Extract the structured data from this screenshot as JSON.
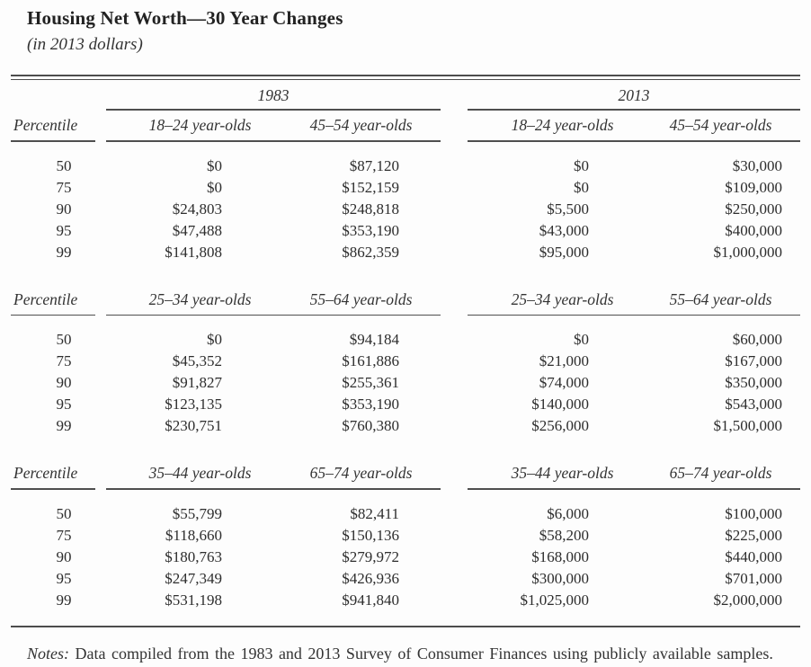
{
  "title": "Housing Net Worth—30 Year Changes",
  "subtitle": "(in 2013 dollars)",
  "table": {
    "year_groups": [
      "1983",
      "2013"
    ],
    "percentile_label": "Percentile",
    "blocks": [
      {
        "headers": [
          "18–24 year-olds",
          "45–54 year-olds",
          "18–24 year-olds",
          "45–54 year-olds"
        ],
        "rows": [
          [
            "50",
            "$0",
            "$87,120",
            "$0",
            "$30,000"
          ],
          [
            "75",
            "$0",
            "$152,159",
            "$0",
            "$109,000"
          ],
          [
            "90",
            "$24,803",
            "$248,818",
            "$5,500",
            "$250,000"
          ],
          [
            "95",
            "$47,488",
            "$353,190",
            "$43,000",
            "$400,000"
          ],
          [
            "99",
            "$141,808",
            "$862,359",
            "$95,000",
            "$1,000,000"
          ]
        ]
      },
      {
        "headers": [
          "25–34 year-olds",
          "55–64 year-olds",
          "25–34 year-olds",
          "55–64 year-olds"
        ],
        "rows": [
          [
            "50",
            "$0",
            "$94,184",
            "$0",
            "$60,000"
          ],
          [
            "75",
            "$45,352",
            "$161,886",
            "$21,000",
            "$167,000"
          ],
          [
            "90",
            "$91,827",
            "$255,361",
            "$74,000",
            "$350,000"
          ],
          [
            "95",
            "$123,135",
            "$353,190",
            "$140,000",
            "$543,000"
          ],
          [
            "99",
            "$230,751",
            "$760,380",
            "$256,000",
            "$1,500,000"
          ]
        ]
      },
      {
        "headers": [
          "35–44 year-olds",
          "65–74 year-olds",
          "35–44 year-olds",
          "65–74 year-olds"
        ],
        "rows": [
          [
            "50",
            "$55,799",
            "$82,411",
            "$6,000",
            "$100,000"
          ],
          [
            "75",
            "$118,660",
            "$150,136",
            "$58,200",
            "$225,000"
          ],
          [
            "90",
            "$180,763",
            "$279,972",
            "$168,000",
            "$440,000"
          ],
          [
            "95",
            "$247,349",
            "$426,936",
            "$300,000",
            "$701,000"
          ],
          [
            "99",
            "$531,198",
            "$941,840",
            "$1,025,000",
            "$2,000,000"
          ]
        ]
      }
    ]
  },
  "notes": {
    "label": "Notes:",
    "text": "Data compiled from the 1983 and 2013 Survey of Consumer Finances using publicly available samples."
  }
}
